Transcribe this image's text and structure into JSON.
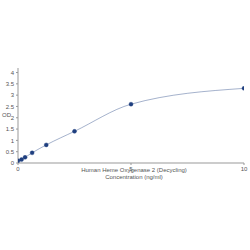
{
  "chart_data": {
    "type": "line",
    "x_label": [
      "Human Heme Oxygenase 2 (Decycling)",
      "Concentration (ng/ml)"
    ],
    "y_label": "OD",
    "x": [
      0,
      0.156,
      0.312,
      0.625,
      1.25,
      2.5,
      5,
      10
    ],
    "values": [
      0.1,
      0.15,
      0.25,
      0.45,
      0.8,
      1.4,
      2.6,
      3.3
    ],
    "color": "#1f3f7f",
    "marker": "circle",
    "xlim": [
      0,
      10
    ],
    "xticks": [
      0,
      5,
      10
    ],
    "ylim": [
      0,
      4.2
    ],
    "yticks": [
      0,
      0.5,
      1,
      1.5,
      2,
      2.5,
      3,
      3.5,
      4
    ],
    "grid": false
  }
}
